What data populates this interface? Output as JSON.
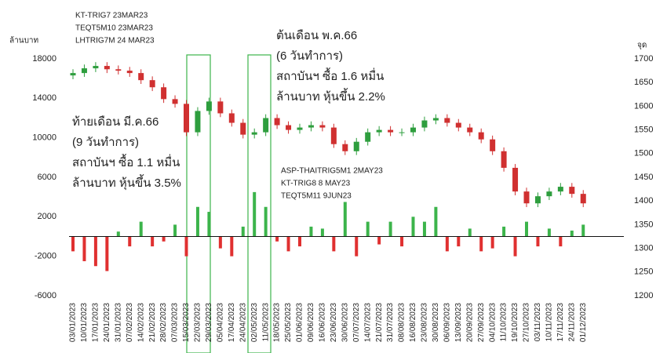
{
  "chart_data": {
    "type": "candlestick",
    "y_label": "ล้านบาท",
    "y2_label": "จุด",
    "categories": [
      "03/01/2023",
      "10/01/2023",
      "17/01/2023",
      "24/01/2023",
      "31/01/2023",
      "07/02/2023",
      "14/02/2023",
      "21/02/2023",
      "28/02/2023",
      "07/03/2023",
      "15/03/2023",
      "22/03/2023",
      "29/03/2023",
      "05/04/2023",
      "17/04/2023",
      "24/04/2023",
      "02/05/2023",
      "11/05/2023",
      "18/05/2023",
      "25/05/2023",
      "01/06/2023",
      "09/06/2023",
      "16/06/2023",
      "23/06/2023",
      "30/06/2023",
      "07/07/2023",
      "14/07/2023",
      "21/07/2023",
      "31/07/2023",
      "08/08/2023",
      "16/08/2023",
      "23/08/2023",
      "30/08/2023",
      "06/09/2023",
      "13/09/2023",
      "20/09/2023",
      "27/09/2023",
      "04/10/2023",
      "11/10/2023",
      "19/10/2023",
      "27/10/2023",
      "03/11/2023",
      "10/11/2023",
      "17/11/2023",
      "24/11/2023",
      "01/12/2023"
    ],
    "open": [
      1665,
      1670,
      1680,
      1685,
      1678,
      1675,
      1670,
      1655,
      1640,
      1615,
      1605,
      1545,
      1590,
      1610,
      1585,
      1565,
      1540,
      1545,
      1575,
      1560,
      1550,
      1555,
      1560,
      1555,
      1520,
      1505,
      1525,
      1545,
      1550,
      1545,
      1545,
      1555,
      1570,
      1575,
      1565,
      1555,
      1545,
      1530,
      1505,
      1470,
      1420,
      1395,
      1410,
      1420,
      1430,
      1415
    ],
    "high": [
      1678,
      1688,
      1693,
      1693,
      1686,
      1683,
      1678,
      1663,
      1648,
      1623,
      1613,
      1598,
      1618,
      1618,
      1593,
      1573,
      1553,
      1583,
      1583,
      1568,
      1563,
      1568,
      1568,
      1563,
      1528,
      1533,
      1553,
      1558,
      1558,
      1553,
      1563,
      1578,
      1583,
      1583,
      1573,
      1563,
      1553,
      1538,
      1513,
      1478,
      1428,
      1418,
      1428,
      1438,
      1438,
      1423
    ],
    "low": [
      1657,
      1662,
      1672,
      1670,
      1667,
      1662,
      1647,
      1632,
      1607,
      1597,
      1537,
      1537,
      1582,
      1577,
      1557,
      1532,
      1532,
      1537,
      1552,
      1542,
      1542,
      1547,
      1547,
      1512,
      1497,
      1497,
      1517,
      1537,
      1537,
      1537,
      1537,
      1547,
      1562,
      1557,
      1547,
      1537,
      1522,
      1497,
      1462,
      1412,
      1387,
      1387,
      1402,
      1412,
      1407,
      1387
    ],
    "close": [
      1670,
      1680,
      1685,
      1678,
      1675,
      1670,
      1655,
      1640,
      1615,
      1605,
      1545,
      1590,
      1610,
      1585,
      1565,
      1540,
      1545,
      1575,
      1560,
      1550,
      1555,
      1560,
      1555,
      1520,
      1505,
      1525,
      1545,
      1550,
      1545,
      1545,
      1555,
      1570,
      1575,
      1565,
      1555,
      1545,
      1530,
      1505,
      1470,
      1420,
      1395,
      1410,
      1420,
      1430,
      1415,
      1395
    ],
    "flow": [
      -1500,
      -2500,
      -3000,
      -3500,
      500,
      -1000,
      1500,
      -1000,
      -500,
      1200,
      -2000,
      3000,
      2500,
      -1200,
      -2000,
      1000,
      4500,
      3000,
      -500,
      -1500,
      -1000,
      1000,
      800,
      -1500,
      3500,
      -2000,
      1500,
      -800,
      1500,
      -1000,
      2000,
      1500,
      3000,
      -1500,
      -1000,
      800,
      -1500,
      -1200,
      1000,
      -2000,
      1500,
      -1000,
      800,
      -1000,
      600,
      1200
    ],
    "up_color": "#3cb44b",
    "down_color": "#e03030",
    "candle_up_color": "#2e9e3e",
    "candle_down_color": "#d03030",
    "ylim": [
      -6000,
      18000
    ],
    "yticks": [
      -6000,
      -2000,
      2000,
      6000,
      10000,
      14000,
      18000
    ],
    "y2lim": [
      1200,
      1700
    ],
    "y2ticks": [
      1200,
      1250,
      1300,
      1350,
      1400,
      1450,
      1500,
      1550,
      1600,
      1650,
      1700
    ],
    "annotations": [
      [
        "KT-TRIG7 23MAR23",
        "TEQT5M10 23MAR23",
        "LHTRIG7M 24 MAR23"
      ],
      [
        "ต้นเดือน พ.ค.66",
        "(6 วันทำการ)",
        "สถาบันฯ ซื้อ 1.6 หมื่น",
        "ล้านบาท หุ้นขึ้น 2.2%"
      ],
      [
        "ท้ายเดือน มี.ค.66",
        "(9 วันทำการ)",
        "สถาบันฯ ซื้อ 1.1 หมื่น",
        "ล้านบาท หุ้นขึ้น 3.5%"
      ],
      [
        "ASP-THAITRIG5M1 2MAY23",
        "KT-TRIG8 8 MAY23",
        "TEQT5M11 9JUN23"
      ]
    ]
  }
}
